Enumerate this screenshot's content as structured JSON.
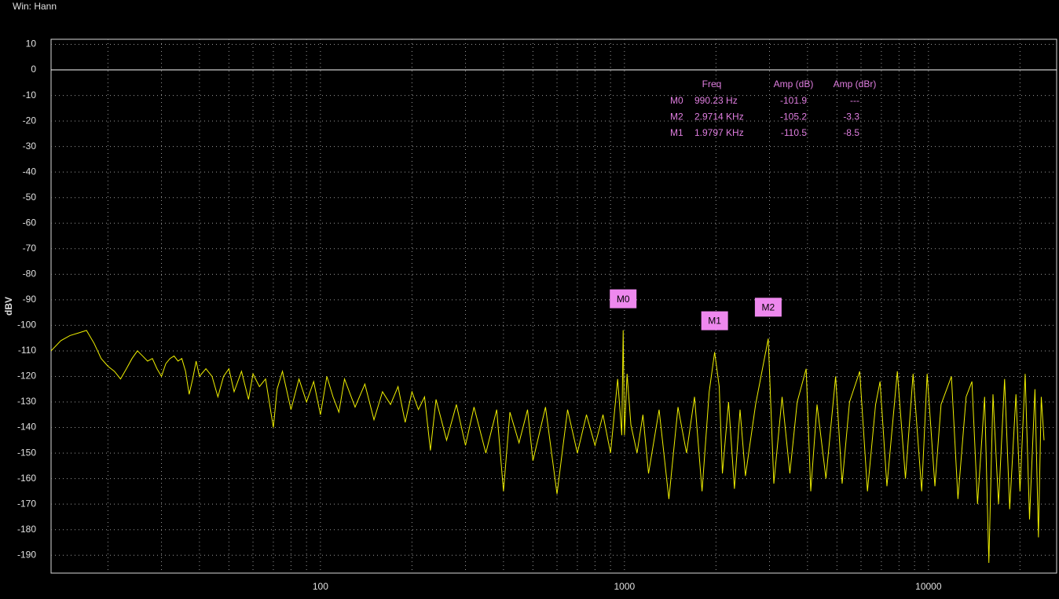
{
  "window_label": "Win: Hann",
  "chart_data": {
    "type": "line",
    "y_label": "dBV",
    "xscale": "log",
    "xlim": [
      13,
      26400
    ],
    "ylim": [
      -197,
      12
    ],
    "xticks": [
      100,
      1000,
      10000
    ],
    "x_minor_grid": [
      20,
      30,
      40,
      50,
      60,
      70,
      80,
      90,
      200,
      300,
      400,
      500,
      600,
      700,
      800,
      900,
      2000,
      3000,
      4000,
      5000,
      6000,
      7000,
      8000,
      9000,
      20000
    ],
    "yticks": [
      10,
      0,
      -10,
      -20,
      -30,
      -40,
      -50,
      -60,
      -70,
      -80,
      -90,
      -100,
      -110,
      -120,
      -130,
      -140,
      -150,
      -160,
      -170,
      -180,
      -190
    ],
    "grid": true,
    "reference_line": 0,
    "series": [
      {
        "color": "#f0f000",
        "x": [
          13,
          14,
          15,
          16,
          17,
          18,
          19,
          20,
          21,
          22,
          23,
          24,
          25,
          26,
          27,
          28,
          29,
          30,
          31,
          32,
          33,
          34,
          35,
          36,
          37,
          38,
          39,
          40,
          42,
          44,
          46,
          48,
          50,
          52,
          55,
          58,
          60,
          63,
          66,
          70,
          72,
          75,
          80,
          85,
          90,
          95,
          100,
          105,
          110,
          115,
          120,
          130,
          140,
          150,
          160,
          170,
          180,
          190,
          200,
          210,
          220,
          230,
          240,
          260,
          280,
          300,
          320,
          350,
          380,
          400,
          420,
          450,
          480,
          500,
          550,
          600,
          650,
          700,
          750,
          800,
          850,
          900,
          950,
          980,
          990.23,
          1000,
          1020,
          1050,
          1100,
          1150,
          1200,
          1300,
          1400,
          1500,
          1600,
          1700,
          1800,
          1900,
          1979.7,
          2050,
          2100,
          2200,
          2300,
          2400,
          2500,
          2700,
          2971.4,
          3100,
          3300,
          3500,
          3700,
          3960,
          4100,
          4300,
          4600,
          4950,
          5200,
          5500,
          5940,
          6300,
          6700,
          6930,
          7300,
          7900,
          8400,
          8900,
          9500,
          9900,
          10500,
          11000,
          11900,
          12500,
          13300,
          13900,
          14500,
          15300,
          15800,
          16300,
          17000,
          17800,
          18500,
          19400,
          20000,
          20800,
          21500,
          22400,
          23000,
          23500,
          24000
        ],
        "values": [
          -110,
          -106,
          -104,
          -103,
          -102,
          -107,
          -113,
          -116,
          -118,
          -121,
          -117,
          -113,
          -110,
          -112,
          -114,
          -113,
          -117,
          -120,
          -115,
          -113,
          -112,
          -114,
          -113,
          -118,
          -127,
          -121,
          -114,
          -120,
          -117,
          -120,
          -128,
          -120,
          -117,
          -126,
          -118,
          -129,
          -119,
          -124,
          -121,
          -140,
          -125,
          -118,
          -133,
          -121,
          -130,
          -122,
          -135,
          -120,
          -128,
          -134,
          -121,
          -132,
          -123,
          -137,
          -126,
          -131,
          -124,
          -138,
          -126,
          -133,
          -128,
          -149,
          -129,
          -145,
          -131,
          -147,
          -132,
          -150,
          -133,
          -165,
          -134,
          -146,
          -133,
          -153,
          -132,
          -166,
          -133,
          -150,
          -135,
          -147,
          -135,
          -150,
          -121,
          -143,
          -101.9,
          -143,
          -119,
          -139,
          -150,
          -135,
          -158,
          -133,
          -168,
          -132,
          -150,
          -128,
          -165,
          -126,
          -110.5,
          -124,
          -158,
          -130,
          -164,
          -133,
          -159,
          -131,
          -105.2,
          -162,
          -128,
          -158,
          -130,
          -117,
          -165,
          -131,
          -160,
          -120,
          -162,
          -130,
          -118,
          -165,
          -131,
          -122,
          -163,
          -118,
          -160,
          -119,
          -165,
          -119,
          -163,
          -131,
          -120,
          -168,
          -128,
          -122,
          -170,
          -128,
          -193,
          -127,
          -170,
          -121,
          -172,
          -127,
          -165,
          -119,
          -176,
          -125,
          -183,
          -128,
          -145
        ]
      }
    ],
    "markers": [
      {
        "label": "M0",
        "x": 990.23,
        "y": -101.9
      },
      {
        "label": "M1",
        "x": 1979.7,
        "y": -110.5
      },
      {
        "label": "M2",
        "x": 2971.4,
        "y": -105.2
      }
    ],
    "marker_table": {
      "headers": [
        "Freq",
        "Amp (dB)",
        "Amp (dBr)"
      ],
      "rows": [
        [
          "M0",
          "990.23 Hz",
          "-101.9",
          "---"
        ],
        [
          "M2",
          "2.9714 KHz",
          "-105.2",
          "-3.3"
        ],
        [
          "M1",
          "1.9797 KHz",
          "-110.5",
          "-8.5"
        ]
      ]
    }
  }
}
